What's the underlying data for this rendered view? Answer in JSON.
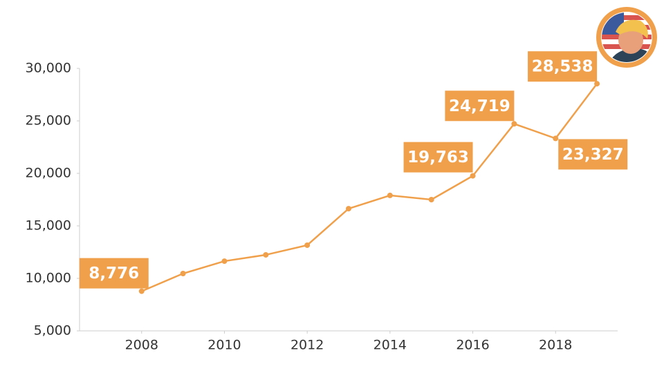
{
  "chart_data": {
    "type": "line",
    "x": [
      2008,
      2009,
      2010,
      2011,
      2012,
      2013,
      2014,
      2015,
      2016,
      2017,
      2018,
      2019
    ],
    "values": [
      8776,
      10460,
      11640,
      12240,
      13160,
      16640,
      17900,
      17500,
      19763,
      24719,
      23327,
      28538
    ],
    "value_labels": [
      "8,776",
      null,
      null,
      null,
      null,
      null,
      null,
      null,
      "19,763",
      "24,719",
      "23,327",
      "28,538"
    ],
    "color": "#f0a04b",
    "xlim": [
      2006.5,
      2019.5
    ],
    "xticks": [
      2008,
      2010,
      2012,
      2014,
      2016,
      2018
    ],
    "ylim": [
      5000,
      30000
    ],
    "yticks": [
      {
        "value": 5000,
        "label": "5,000"
      },
      {
        "value": 10000,
        "label": "10,000"
      },
      {
        "value": 15000,
        "label": "15,000"
      },
      {
        "value": 20000,
        "label": "20,000"
      },
      {
        "value": 25000,
        "label": "25,000"
      },
      {
        "value": 30000,
        "label": "30,000"
      }
    ]
  }
}
